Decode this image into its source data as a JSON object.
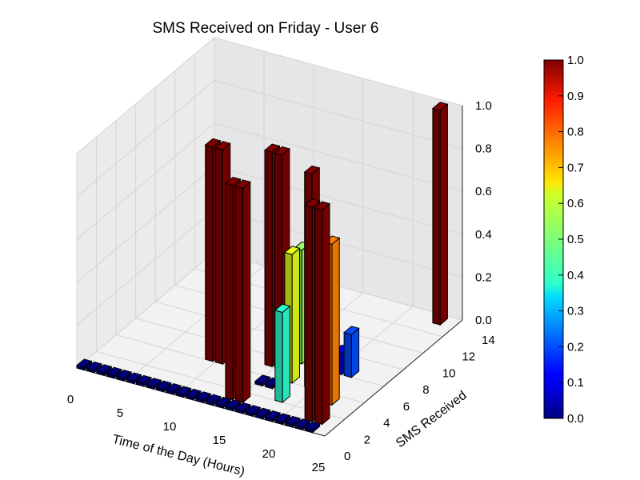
{
  "chart_data": {
    "type": "bar3d",
    "title": "SMS Received on Friday - User 6",
    "xlabel": "Time of the Day (Hours)",
    "ylabel": "SMS Received",
    "zlabel": "",
    "xlim": [
      0,
      25
    ],
    "ylim": [
      0,
      14
    ],
    "zlim": [
      0,
      1.0
    ],
    "x_ticks": [
      "0",
      "5",
      "10",
      "15",
      "20",
      "25"
    ],
    "y_ticks": [
      "0",
      "2",
      "4",
      "6",
      "8",
      "10",
      "12",
      "14"
    ],
    "z_ticks": [
      "0.0",
      "0.2",
      "0.4",
      "0.6",
      "0.8",
      "1.0"
    ],
    "colorbar": {
      "colormap": "jet",
      "range": [
        0,
        1
      ],
      "ticks": [
        "0.0",
        "0.1",
        "0.2",
        "0.3",
        "0.4",
        "0.5",
        "0.6",
        "0.7",
        "0.8",
        "0.9",
        "1.0"
      ]
    },
    "grid": true,
    "bars": [
      {
        "x": 0,
        "y": 0,
        "z": 0.0
      },
      {
        "x": 1,
        "y": 0,
        "z": 0.0
      },
      {
        "x": 2,
        "y": 0,
        "z": 0.0
      },
      {
        "x": 3,
        "y": 0,
        "z": 0.0
      },
      {
        "x": 4,
        "y": 0,
        "z": 0.0
      },
      {
        "x": 5,
        "y": 0,
        "z": 0.0
      },
      {
        "x": 6,
        "y": 0,
        "z": 0.0
      },
      {
        "x": 7,
        "y": 0,
        "z": 0.0
      },
      {
        "x": 8,
        "y": 0,
        "z": 0.0
      },
      {
        "x": 9,
        "y": 0,
        "z": 0.0
      },
      {
        "x": 10,
        "y": 0,
        "z": 0.0
      },
      {
        "x": 11,
        "y": 0,
        "z": 0.0
      },
      {
        "x": 12,
        "y": 0,
        "z": 0.0
      },
      {
        "x": 13,
        "y": 0,
        "z": 0.0
      },
      {
        "x": 14,
        "y": 0,
        "z": 0.0
      },
      {
        "x": 15,
        "y": 0,
        "z": 0.0
      },
      {
        "x": 16,
        "y": 0,
        "z": 0.0
      },
      {
        "x": 17,
        "y": 0,
        "z": 0.0
      },
      {
        "x": 18,
        "y": 0,
        "z": 0.0
      },
      {
        "x": 19,
        "y": 0,
        "z": 0.0
      },
      {
        "x": 20,
        "y": 0,
        "z": 0.0
      },
      {
        "x": 21,
        "y": 0,
        "z": 0.0
      },
      {
        "x": 22,
        "y": 0,
        "z": 0.0
      },
      {
        "x": 23,
        "y": 0,
        "z": 0.0
      },
      {
        "x": 10,
        "y": 5,
        "z": 0.03
      },
      {
        "x": 11,
        "y": 5,
        "z": 0.05
      },
      {
        "x": 9,
        "y": 4,
        "z": 1.0
      },
      {
        "x": 10,
        "y": 4,
        "z": 1.0
      },
      {
        "x": 14,
        "y": 1,
        "z": 1.0
      },
      {
        "x": 15,
        "y": 1,
        "z": 1.0
      },
      {
        "x": 14,
        "y": 5,
        "z": 1.0
      },
      {
        "x": 15,
        "y": 5,
        "z": 1.0
      },
      {
        "x": 15,
        "y": 3,
        "z": 0.0
      },
      {
        "x": 16,
        "y": 6,
        "z": 0.53
      },
      {
        "x": 16,
        "y": 3,
        "z": 0.0
      },
      {
        "x": 17,
        "y": 4,
        "z": 0.6
      },
      {
        "x": 18,
        "y": 2,
        "z": 0.42
      },
      {
        "x": 19,
        "y": 4,
        "z": 1.0
      },
      {
        "x": 20,
        "y": 6,
        "z": 0.1
      },
      {
        "x": 21,
        "y": 6,
        "z": 0.2
      },
      {
        "x": 22,
        "y": 1,
        "z": 1.0
      },
      {
        "x": 22,
        "y": 3,
        "z": 0.75
      },
      {
        "x": 23,
        "y": 1,
        "z": 1.0
      },
      {
        "x": 23,
        "y": 13,
        "z": 1.0
      }
    ]
  }
}
